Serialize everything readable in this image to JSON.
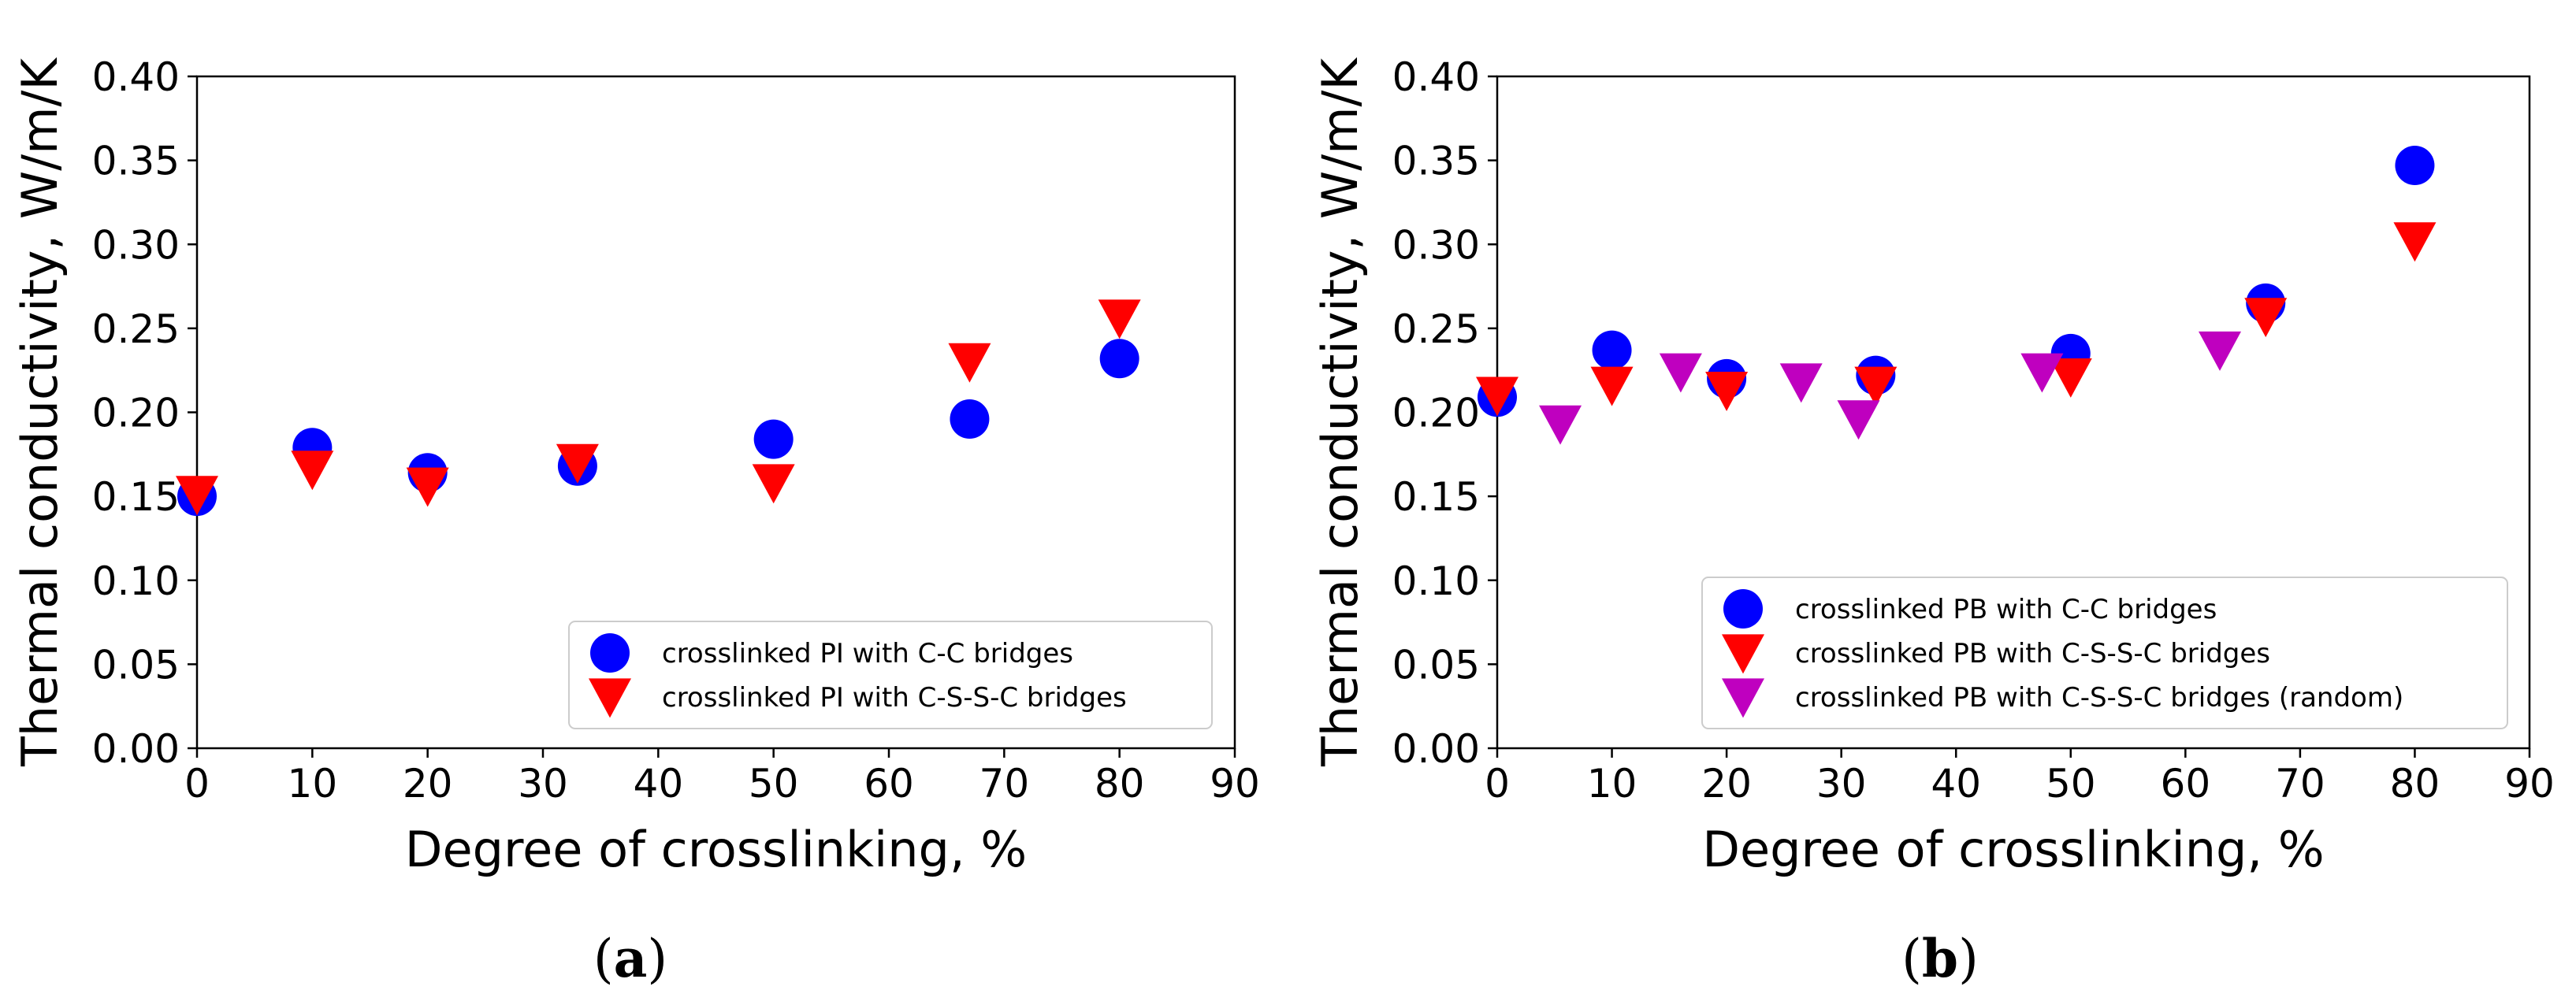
{
  "chart_data": [
    {
      "type": "scatter",
      "panel_label": "a",
      "xlabel": "Degree of crosslinking, %",
      "ylabel": "Thermal conductivity, W/m/K",
      "xlim": [
        0,
        90
      ],
      "ylim": [
        0,
        0.4
      ],
      "xticks": [
        "0",
        "10",
        "20",
        "30",
        "40",
        "50",
        "60",
        "70",
        "80",
        "90"
      ],
      "yticks": [
        "0.00",
        "0.05",
        "0.10",
        "0.15",
        "0.20",
        "0.25",
        "0.30",
        "0.35",
        "0.40"
      ],
      "legend_position": "lower-right",
      "series": [
        {
          "name": "crosslinked PI with C-C bridges",
          "marker": "circle",
          "color": "#0000ff",
          "x": [
            0,
            10,
            20,
            33,
            50,
            67,
            80
          ],
          "y": [
            0.15,
            0.179,
            0.164,
            0.168,
            0.184,
            0.196,
            0.232
          ]
        },
        {
          "name": "crosslinked PI with C-S-S-C bridges",
          "marker": "triangle-down",
          "color": "#ff0000",
          "x": [
            0,
            10,
            20,
            33,
            50,
            67,
            80
          ],
          "y": [
            0.152,
            0.167,
            0.157,
            0.171,
            0.159,
            0.231,
            0.257
          ]
        }
      ]
    },
    {
      "type": "scatter",
      "panel_label": "b",
      "xlabel": "Degree of crosslinking, %",
      "ylabel": "Thermal conductivity, W/m/K",
      "xlim": [
        0,
        90
      ],
      "ylim": [
        0,
        0.4
      ],
      "xticks": [
        "0",
        "10",
        "20",
        "30",
        "40",
        "50",
        "60",
        "70",
        "80",
        "90"
      ],
      "yticks": [
        "0.00",
        "0.05",
        "0.10",
        "0.15",
        "0.20",
        "0.25",
        "0.30",
        "0.35",
        "0.40"
      ],
      "legend_position": "lower-right",
      "series": [
        {
          "name": "crosslinked PB with C-C bridges",
          "marker": "circle",
          "color": "#0000ff",
          "x": [
            0,
            10,
            20,
            33,
            50,
            67,
            80
          ],
          "y": [
            0.209,
            0.237,
            0.22,
            0.222,
            0.235,
            0.265,
            0.347
          ]
        },
        {
          "name": "crosslinked PB with C-S-S-C bridges",
          "marker": "triangle-down",
          "color": "#ff0000",
          "x": [
            0,
            10,
            20,
            33,
            50,
            67,
            80
          ],
          "y": [
            0.211,
            0.217,
            0.214,
            0.217,
            0.222,
            0.258,
            0.303
          ]
        },
        {
          "name": "crosslinked PB with C-S-S-C bridges (random)",
          "marker": "triangle-down",
          "color": "#bf00bf",
          "x": [
            5.5,
            16,
            26.5,
            31.5,
            47.5,
            63
          ],
          "y": [
            0.194,
            0.225,
            0.219,
            0.197,
            0.225,
            0.238
          ]
        }
      ]
    }
  ]
}
